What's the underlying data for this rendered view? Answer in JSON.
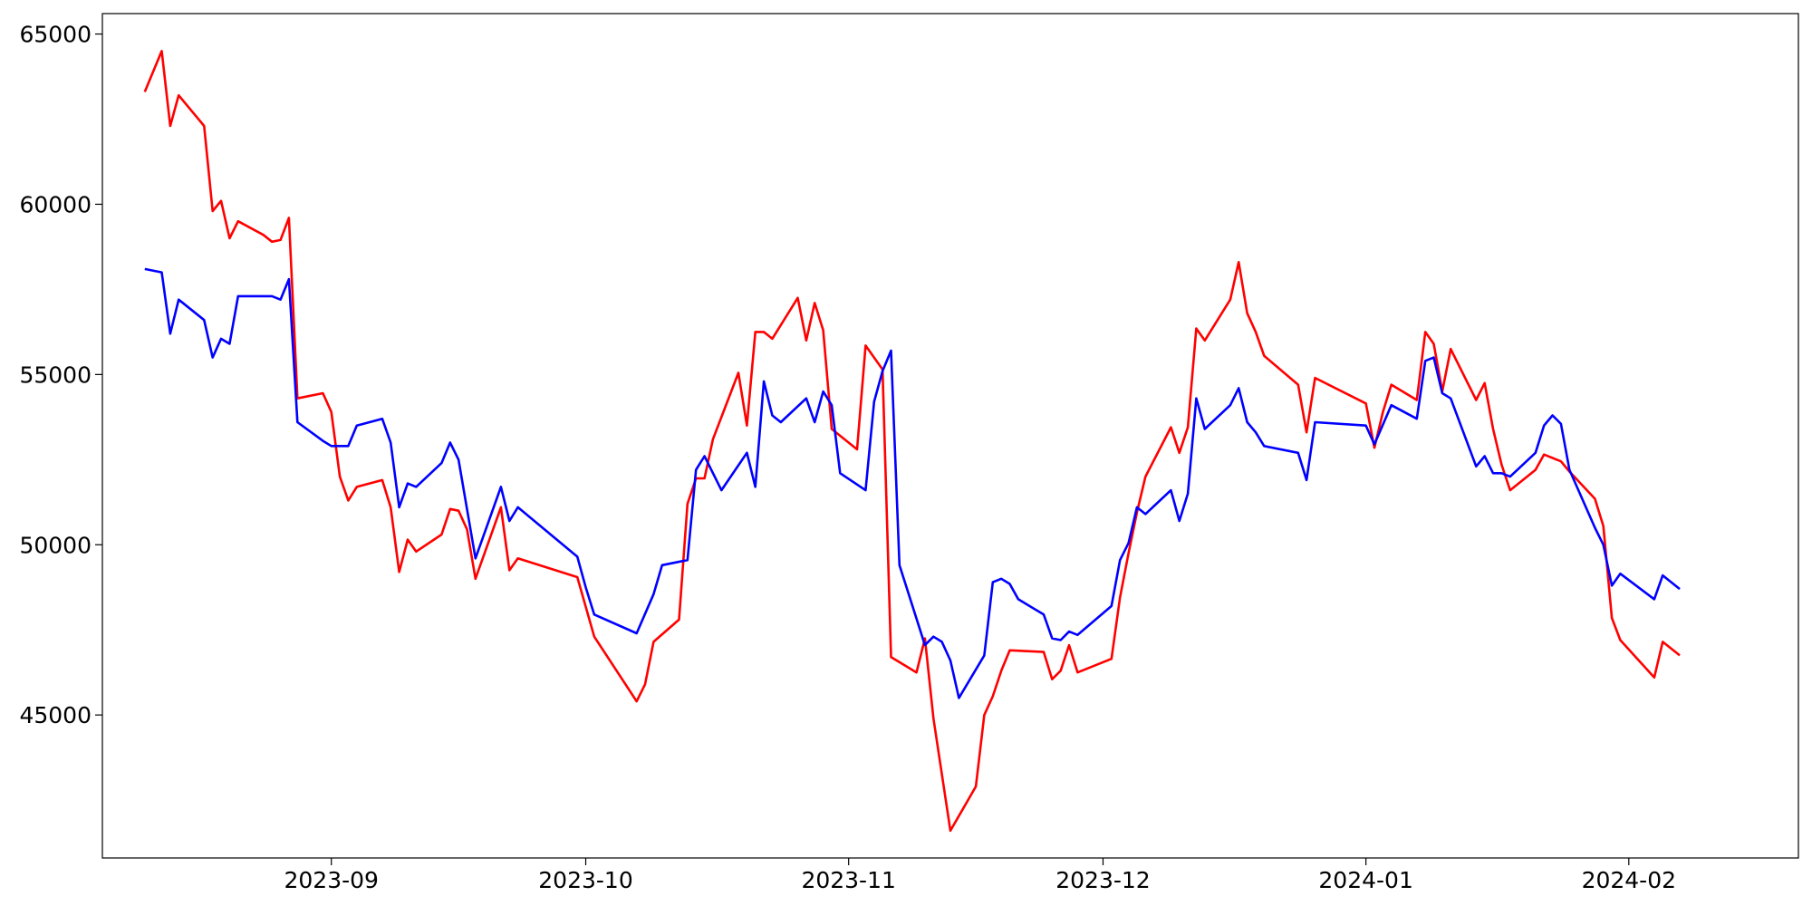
{
  "chart_data": {
    "type": "line",
    "title": "",
    "xlabel": "",
    "ylabel": "",
    "x_ticks": [
      "2023-09-01",
      "2023-10-01",
      "2023-11-01",
      "2023-12-01",
      "2024-01-01",
      "2024-02-01"
    ],
    "x_tick_labels": [
      "2023-09",
      "2023-10",
      "2023-11",
      "2023-12",
      "2024-01",
      "2024-02"
    ],
    "y_ticks": [
      45000,
      50000,
      55000,
      60000,
      65000
    ],
    "y_tick_labels": [
      "45000",
      "50000",
      "55000",
      "60000",
      "65000"
    ],
    "xlim": [
      "2023-08-05",
      "2024-02-21"
    ],
    "ylim": [
      40800,
      65600
    ],
    "grid": false,
    "legend": "none",
    "series": [
      {
        "color": "#ff0000",
        "points": [
          [
            "2023-08-10",
            63300
          ],
          [
            "2023-08-12",
            64500
          ],
          [
            "2023-08-13",
            62300
          ],
          [
            "2023-08-14",
            63200
          ],
          [
            "2023-08-17",
            62300
          ],
          [
            "2023-08-18",
            59800
          ],
          [
            "2023-08-19",
            60100
          ],
          [
            "2023-08-20",
            59000
          ],
          [
            "2023-08-21",
            59500
          ],
          [
            "2023-08-24",
            59100
          ],
          [
            "2023-08-25",
            58900
          ],
          [
            "2023-08-26",
            58950
          ],
          [
            "2023-08-27",
            59600
          ],
          [
            "2023-08-28",
            54300
          ],
          [
            "2023-08-31",
            54450
          ],
          [
            "2023-09-01",
            53900
          ],
          [
            "2023-09-02",
            52000
          ],
          [
            "2023-09-03",
            51300
          ],
          [
            "2023-09-04",
            51700
          ],
          [
            "2023-09-07",
            51900
          ],
          [
            "2023-09-08",
            51100
          ],
          [
            "2023-09-09",
            49200
          ],
          [
            "2023-09-10",
            50150
          ],
          [
            "2023-09-11",
            49800
          ],
          [
            "2023-09-14",
            50300
          ],
          [
            "2023-09-15",
            51050
          ],
          [
            "2023-09-16",
            51000
          ],
          [
            "2023-09-17",
            50450
          ],
          [
            "2023-09-18",
            49000
          ],
          [
            "2023-09-21",
            51100
          ],
          [
            "2023-09-22",
            49250
          ],
          [
            "2023-09-23",
            49600
          ],
          [
            "2023-09-30",
            49050
          ],
          [
            "2023-10-02",
            47300
          ],
          [
            "2023-10-07",
            45400
          ],
          [
            "2023-10-08",
            45900
          ],
          [
            "2023-10-09",
            47150
          ],
          [
            "2023-10-12",
            47800
          ],
          [
            "2023-10-13",
            51200
          ],
          [
            "2023-10-14",
            51950
          ],
          [
            "2023-10-15",
            51950
          ],
          [
            "2023-10-16",
            53100
          ],
          [
            "2023-10-19",
            55050
          ],
          [
            "2023-10-20",
            53500
          ],
          [
            "2023-10-21",
            56250
          ],
          [
            "2023-10-22",
            56250
          ],
          [
            "2023-10-23",
            56050
          ],
          [
            "2023-10-26",
            57250
          ],
          [
            "2023-10-27",
            56000
          ],
          [
            "2023-10-28",
            57100
          ],
          [
            "2023-10-29",
            56300
          ],
          [
            "2023-10-30",
            53400
          ],
          [
            "2023-11-02",
            52800
          ],
          [
            "2023-11-03",
            55850
          ],
          [
            "2023-11-05",
            55150
          ],
          [
            "2023-11-06",
            46700
          ],
          [
            "2023-11-09",
            46250
          ],
          [
            "2023-11-10",
            47250
          ],
          [
            "2023-11-11",
            44900
          ],
          [
            "2023-11-13",
            41600
          ],
          [
            "2023-11-16",
            42900
          ],
          [
            "2023-11-17",
            45000
          ],
          [
            "2023-11-18",
            45550
          ],
          [
            "2023-11-19",
            46300
          ],
          [
            "2023-11-20",
            46900
          ],
          [
            "2023-11-24",
            46850
          ],
          [
            "2023-11-25",
            46050
          ],
          [
            "2023-11-26",
            46300
          ],
          [
            "2023-11-27",
            47050
          ],
          [
            "2023-11-28",
            46250
          ],
          [
            "2023-12-02",
            46650
          ],
          [
            "2023-12-03",
            48450
          ],
          [
            "2023-12-04",
            49750
          ],
          [
            "2023-12-05",
            50950
          ],
          [
            "2023-12-06",
            52000
          ],
          [
            "2023-12-09",
            53450
          ],
          [
            "2023-12-10",
            52700
          ],
          [
            "2023-12-11",
            53450
          ],
          [
            "2023-12-12",
            56350
          ],
          [
            "2023-12-13",
            56000
          ],
          [
            "2023-12-16",
            57200
          ],
          [
            "2023-12-17",
            58300
          ],
          [
            "2023-12-18",
            56800
          ],
          [
            "2023-12-19",
            56250
          ],
          [
            "2023-12-20",
            55550
          ],
          [
            "2023-12-24",
            54700
          ],
          [
            "2023-12-25",
            53300
          ],
          [
            "2023-12-26",
            54900
          ],
          [
            "2024-01-01",
            54150
          ],
          [
            "2024-01-02",
            52850
          ],
          [
            "2024-01-03",
            53900
          ],
          [
            "2024-01-04",
            54700
          ],
          [
            "2024-01-07",
            54250
          ],
          [
            "2024-01-08",
            56250
          ],
          [
            "2024-01-09",
            55900
          ],
          [
            "2024-01-10",
            54500
          ],
          [
            "2024-01-11",
            55750
          ],
          [
            "2024-01-14",
            54250
          ],
          [
            "2024-01-15",
            54750
          ],
          [
            "2024-01-16",
            53400
          ],
          [
            "2024-01-17",
            52350
          ],
          [
            "2024-01-18",
            51600
          ],
          [
            "2024-01-21",
            52200
          ],
          [
            "2024-01-22",
            52650
          ],
          [
            "2024-01-24",
            52450
          ],
          [
            "2024-01-25",
            52150
          ],
          [
            "2024-01-28",
            51350
          ],
          [
            "2024-01-29",
            50550
          ],
          [
            "2024-01-30",
            47850
          ],
          [
            "2024-01-31",
            47200
          ],
          [
            "2024-02-04",
            46100
          ],
          [
            "2024-02-05",
            47150
          ],
          [
            "2024-02-07",
            46750
          ]
        ]
      },
      {
        "color": "#0000ff",
        "points": [
          [
            "2023-08-10",
            58100
          ],
          [
            "2023-08-12",
            58000
          ],
          [
            "2023-08-13",
            56200
          ],
          [
            "2023-08-14",
            57200
          ],
          [
            "2023-08-17",
            56600
          ],
          [
            "2023-08-18",
            55500
          ],
          [
            "2023-08-19",
            56050
          ],
          [
            "2023-08-20",
            55900
          ],
          [
            "2023-08-21",
            57300
          ],
          [
            "2023-08-25",
            57300
          ],
          [
            "2023-08-26",
            57200
          ],
          [
            "2023-08-27",
            57800
          ],
          [
            "2023-08-28",
            53600
          ],
          [
            "2023-08-31",
            53050
          ],
          [
            "2023-09-01",
            52900
          ],
          [
            "2023-09-03",
            52900
          ],
          [
            "2023-09-04",
            53500
          ],
          [
            "2023-09-07",
            53700
          ],
          [
            "2023-09-08",
            53000
          ],
          [
            "2023-09-09",
            51100
          ],
          [
            "2023-09-10",
            51800
          ],
          [
            "2023-09-11",
            51700
          ],
          [
            "2023-09-14",
            52400
          ],
          [
            "2023-09-15",
            53000
          ],
          [
            "2023-09-16",
            52500
          ],
          [
            "2023-09-18",
            49600
          ],
          [
            "2023-09-21",
            51700
          ],
          [
            "2023-09-22",
            50700
          ],
          [
            "2023-09-23",
            51100
          ],
          [
            "2023-09-30",
            49650
          ],
          [
            "2023-10-01",
            48750
          ],
          [
            "2023-10-02",
            47950
          ],
          [
            "2023-10-07",
            47400
          ],
          [
            "2023-10-09",
            48550
          ],
          [
            "2023-10-10",
            49400
          ],
          [
            "2023-10-13",
            49550
          ],
          [
            "2023-10-14",
            52200
          ],
          [
            "2023-10-15",
            52600
          ],
          [
            "2023-10-17",
            51600
          ],
          [
            "2023-10-20",
            52700
          ],
          [
            "2023-10-21",
            51700
          ],
          [
            "2023-10-22",
            54800
          ],
          [
            "2023-10-23",
            53800
          ],
          [
            "2023-10-24",
            53600
          ],
          [
            "2023-10-27",
            54300
          ],
          [
            "2023-10-28",
            53600
          ],
          [
            "2023-10-29",
            54500
          ],
          [
            "2023-10-30",
            54100
          ],
          [
            "2023-10-31",
            52100
          ],
          [
            "2023-11-03",
            51600
          ],
          [
            "2023-11-04",
            54200
          ],
          [
            "2023-11-05",
            55100
          ],
          [
            "2023-11-06",
            55700
          ],
          [
            "2023-11-07",
            49400
          ],
          [
            "2023-11-10",
            47050
          ],
          [
            "2023-11-11",
            47300
          ],
          [
            "2023-11-12",
            47150
          ],
          [
            "2023-11-13",
            46600
          ],
          [
            "2023-11-14",
            45500
          ],
          [
            "2023-11-17",
            46750
          ],
          [
            "2023-11-18",
            48900
          ],
          [
            "2023-11-19",
            49000
          ],
          [
            "2023-11-20",
            48850
          ],
          [
            "2023-11-21",
            48400
          ],
          [
            "2023-11-24",
            47950
          ],
          [
            "2023-11-25",
            47250
          ],
          [
            "2023-11-26",
            47200
          ],
          [
            "2023-11-27",
            47450
          ],
          [
            "2023-11-28",
            47350
          ],
          [
            "2023-12-02",
            48200
          ],
          [
            "2023-12-03",
            49550
          ],
          [
            "2023-12-04",
            50050
          ],
          [
            "2023-12-05",
            51100
          ],
          [
            "2023-12-06",
            50900
          ],
          [
            "2023-12-09",
            51600
          ],
          [
            "2023-12-10",
            50700
          ],
          [
            "2023-12-11",
            51500
          ],
          [
            "2023-12-12",
            54300
          ],
          [
            "2023-12-13",
            53400
          ],
          [
            "2023-12-16",
            54100
          ],
          [
            "2023-12-17",
            54600
          ],
          [
            "2023-12-18",
            53600
          ],
          [
            "2023-12-19",
            53300
          ],
          [
            "2023-12-20",
            52900
          ],
          [
            "2023-12-24",
            52700
          ],
          [
            "2023-12-25",
            51900
          ],
          [
            "2023-12-26",
            53600
          ],
          [
            "2024-01-01",
            53500
          ],
          [
            "2024-01-02",
            52950
          ],
          [
            "2024-01-04",
            54100
          ],
          [
            "2024-01-07",
            53700
          ],
          [
            "2024-01-08",
            55400
          ],
          [
            "2024-01-09",
            55500
          ],
          [
            "2024-01-10",
            54450
          ],
          [
            "2024-01-11",
            54300
          ],
          [
            "2024-01-14",
            52300
          ],
          [
            "2024-01-15",
            52600
          ],
          [
            "2024-01-16",
            52100
          ],
          [
            "2024-01-17",
            52100
          ],
          [
            "2024-01-18",
            52000
          ],
          [
            "2024-01-21",
            52700
          ],
          [
            "2024-01-22",
            53500
          ],
          [
            "2024-01-23",
            53800
          ],
          [
            "2024-01-24",
            53550
          ],
          [
            "2024-01-25",
            52200
          ],
          [
            "2024-01-28",
            50500
          ],
          [
            "2024-01-29",
            50000
          ],
          [
            "2024-01-30",
            48800
          ],
          [
            "2024-01-31",
            49150
          ],
          [
            "2024-02-04",
            48400
          ],
          [
            "2024-02-05",
            49100
          ],
          [
            "2024-02-07",
            48700
          ]
        ]
      }
    ]
  }
}
